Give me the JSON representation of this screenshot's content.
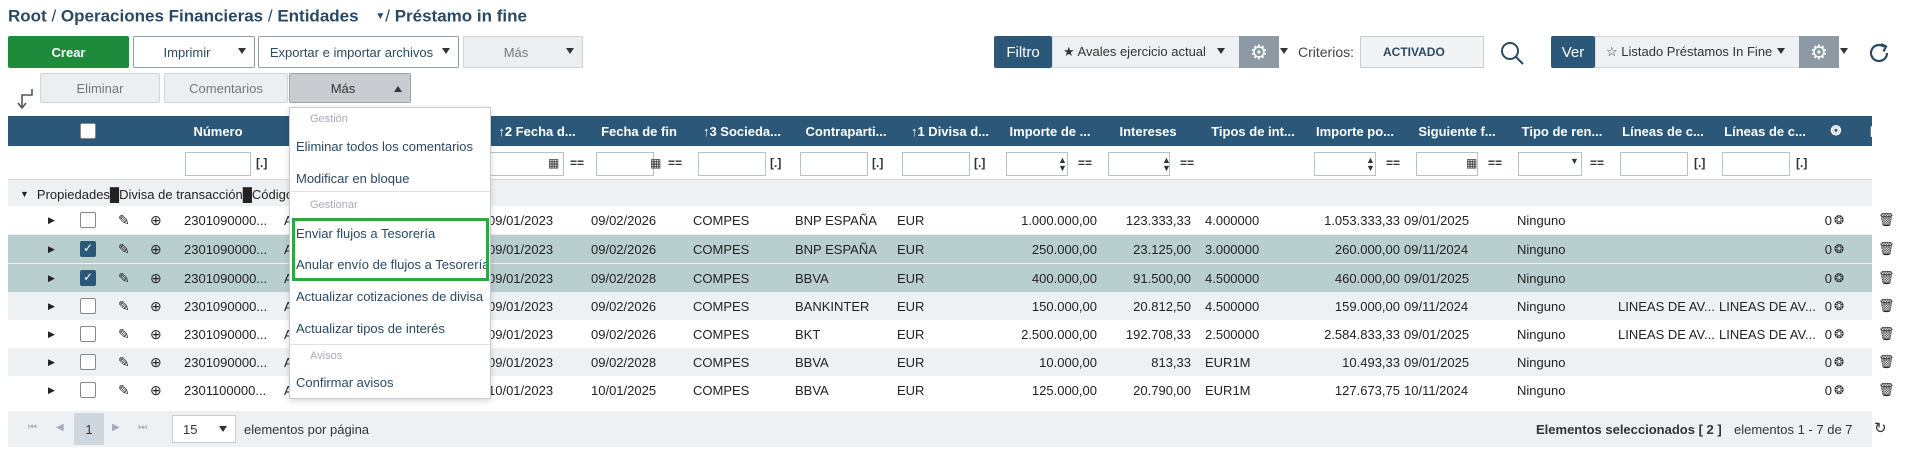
{
  "breadcrumb": {
    "root": "Root",
    "sep1": "/",
    "level1": "Operaciones Financieras",
    "sep2": "/",
    "level2": "Entidades",
    "sep3": "/",
    "current": "Préstamo in fine"
  },
  "toolbar": {
    "create": "Crear",
    "print": "Imprimir",
    "export_import": "Exportar e importar archivos",
    "more": "Más",
    "filter_label": "Filtro",
    "filter_value": "★ Avales ejercicio actual",
    "criteria_label": "Criterios:",
    "criteria_value": "ACTIVADO",
    "view_label": "Ver",
    "view_value": "☆ Listado Préstamos In Fine"
  },
  "actionbar": {
    "delete": "Eliminar",
    "comments": "Comentarios",
    "more": "Más"
  },
  "dropdown": {
    "section_gestion": "Gestión",
    "delete_all_comments": "Eliminar todos los comentarios",
    "bulk_edit": "Modificar en bloque",
    "section_gestionar": "Gestionar",
    "send_flows": "Enviar flujos a Tesorería",
    "cancel_send_flows": "Anular envío de flujos a Tesorería",
    "update_fx": "Actualizar cotizaciones de divisa",
    "update_rates": "Actualizar tipos de interés",
    "section_avisos": "Avisos",
    "confirm_notices": "Confirmar avisos"
  },
  "table": {
    "columns": [
      "Número",
      "A",
      "↑2 Fecha d...",
      "Fecha de fin",
      "↑3 Socieda...",
      "Contraparti...",
      "↑1 Divisa d...",
      "Importe de ...",
      "Intereses",
      "Tipos de int...",
      "Importe po...",
      "Siguiente f...",
      "Tipo de ren...",
      "Líneas de c...",
      "Líneas de c..."
    ],
    "filter_eq": "==",
    "filter_list": "[.]",
    "group_label": "Propiedades█Divisa de transacción█Código: EUR",
    "rows": [
      {
        "num": "2301090000...",
        "a": "A",
        "start": "09/01/2023",
        "end": "09/02/2026",
        "soc": "COMPES",
        "cp": "BNP ESPAÑA",
        "cur": "EUR",
        "amount": "1.000.000,00",
        "int": "123.333,33",
        "rate": "4.000000",
        "imp": "1.053.333,33",
        "next": "09/01/2025",
        "ren": "Ninguno",
        "l1": "",
        "l2": "",
        "cnt": "0",
        "checked": false
      },
      {
        "num": "2301090000...",
        "a": "A",
        "start": "09/01/2023",
        "end": "09/02/2026",
        "soc": "COMPES",
        "cp": "BNP ESPAÑA",
        "cur": "EUR",
        "amount": "250.000,00",
        "int": "23.125,00",
        "rate": "3.000000",
        "imp": "260.000,00",
        "next": "09/11/2024",
        "ren": "Ninguno",
        "l1": "",
        "l2": "",
        "cnt": "0",
        "checked": true
      },
      {
        "num": "2301090000...",
        "a": "A",
        "start": "09/01/2023",
        "end": "09/02/2028",
        "soc": "COMPES",
        "cp": "BBVA",
        "cur": "EUR",
        "amount": "400.000,00",
        "int": "91.500,00",
        "rate": "4.500000",
        "imp": "460.000,00",
        "next": "09/01/2025",
        "ren": "Ninguno",
        "l1": "",
        "l2": "",
        "cnt": "0",
        "checked": true
      },
      {
        "num": "2301090000...",
        "a": "A",
        "start": "09/01/2023",
        "end": "09/02/2026",
        "soc": "COMPES",
        "cp": "BANKINTER",
        "cur": "EUR",
        "amount": "150.000,00",
        "int": "20.812,50",
        "rate": "4.500000",
        "imp": "159.000,00",
        "next": "09/11/2024",
        "ren": "Ninguno",
        "l1": "LINEAS DE AV...",
        "l2": "LINEAS DE AV...",
        "cnt": "0",
        "checked": false
      },
      {
        "num": "2301090000...",
        "a": "A",
        "start": "09/01/2023",
        "end": "09/02/2026",
        "soc": "COMPES",
        "cp": "BKT",
        "cur": "EUR",
        "amount": "2.500.000,00",
        "int": "192.708,33",
        "rate": "2.500000",
        "imp": "2.584.833,33",
        "next": "09/01/2025",
        "ren": "Ninguno",
        "l1": "LINEAS DE AV...",
        "l2": "LINEAS DE AV...",
        "cnt": "0",
        "checked": false
      },
      {
        "num": "2301090000...",
        "a": "A",
        "start": "09/01/2023",
        "end": "09/02/2028",
        "soc": "COMPES",
        "cp": "BBVA",
        "cur": "EUR",
        "amount": "10.000,00",
        "int": "813,33",
        "rate": "EUR1M",
        "imp": "10.493,33",
        "next": "09/01/2025",
        "ren": "Ninguno",
        "l1": "",
        "l2": "",
        "cnt": "0",
        "checked": false
      },
      {
        "num": "2301100000...",
        "a": "A",
        "start": "10/01/2023",
        "end": "10/01/2025",
        "soc": "COMPES",
        "cp": "BBVA",
        "cur": "EUR",
        "amount": "125.000,00",
        "int": "20.790,00",
        "rate": "EUR1M",
        "imp": "127.673,75",
        "next": "10/11/2024",
        "ren": "Ninguno",
        "l1": "",
        "l2": "",
        "cnt": "0",
        "checked": false
      }
    ]
  },
  "footer": {
    "page": "1",
    "page_size": "15",
    "per_page_label": "elementos por página",
    "selected": "Elementos seleccionados [ 2 ]",
    "range": "elementos 1 - 7 de 7"
  },
  "colors": {
    "header": "#2b5878",
    "create": "#1e8a3c",
    "highlight": "#2fa844",
    "selected_row": "#b9cfcf"
  }
}
